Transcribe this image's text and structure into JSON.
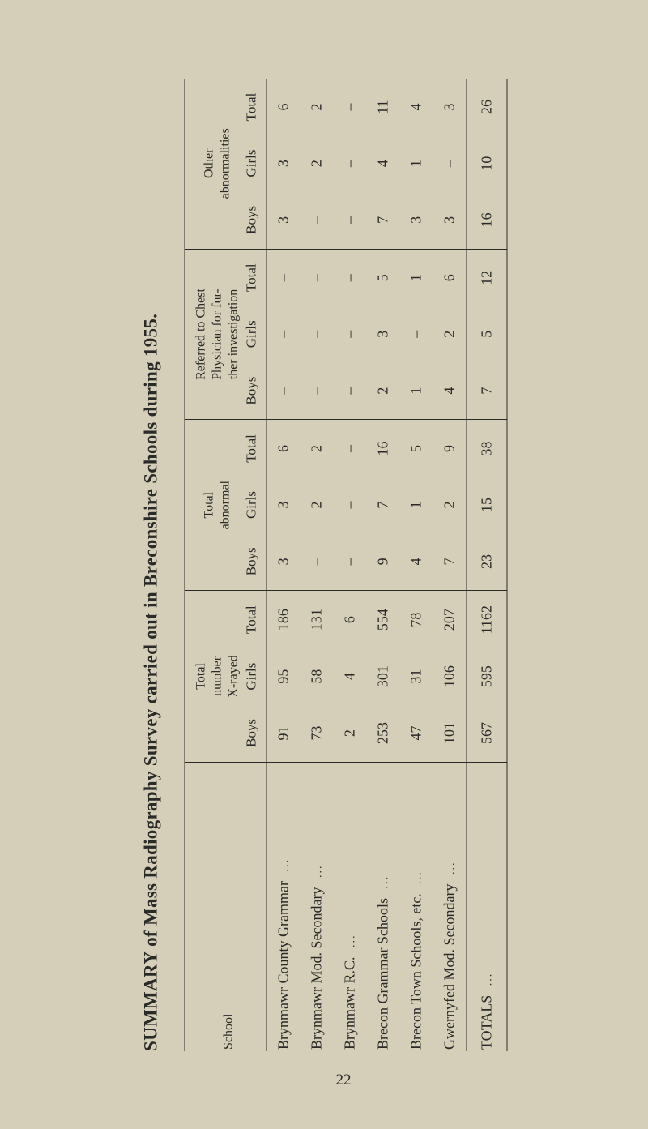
{
  "title": "SUMMARY of Mass Radiography Survey carried out in Breconshire Schools during 1955.",
  "page_number": "22",
  "groups": [
    {
      "label": "Total\nnumber\nX-rayed",
      "subs": [
        "Boys",
        "Girls",
        "Total"
      ]
    },
    {
      "label": "Total\nabnormal",
      "subs": [
        "Boys",
        "Girls",
        "Total"
      ]
    },
    {
      "label": "Referred to Chest\nPhysician for fur-\nther investigation",
      "subs": [
        "Boys",
        "Girls",
        "Total"
      ]
    },
    {
      "label": "Other\nabnormalities",
      "subs": [
        "Boys",
        "Girls",
        "Total"
      ]
    }
  ],
  "school_header": "School",
  "rows": [
    {
      "school": "Brynmawr County Grammar",
      "cells": [
        "91",
        "95",
        "186",
        "3",
        "3",
        "6",
        "–",
        "–",
        "–",
        "3",
        "3",
        "6"
      ]
    },
    {
      "school": "Brynmawr Mod. Secondary",
      "cells": [
        "73",
        "58",
        "131",
        "–",
        "2",
        "2",
        "–",
        "–",
        "–",
        "–",
        "2",
        "2"
      ]
    },
    {
      "school": "Brynmawr R.C.",
      "cells": [
        "2",
        "4",
        "6",
        "–",
        "–",
        "–",
        "–",
        "–",
        "–",
        "–",
        "–",
        "–"
      ]
    },
    {
      "school": "Brecon Grammar Schools",
      "cells": [
        "253",
        "301",
        "554",
        "9",
        "7",
        "16",
        "2",
        "3",
        "5",
        "7",
        "4",
        "11"
      ]
    },
    {
      "school": "Brecon Town Schools, etc.",
      "cells": [
        "47",
        "31",
        "78",
        "4",
        "1",
        "5",
        "1",
        "–",
        "1",
        "3",
        "1",
        "4"
      ]
    },
    {
      "school": "Gwernyfed Mod. Secondary",
      "cells": [
        "101",
        "106",
        "207",
        "7",
        "2",
        "9",
        "4",
        "2",
        "6",
        "3",
        "–",
        "3"
      ]
    }
  ],
  "totals": {
    "label": "TOTALS",
    "cells": [
      "567",
      "595",
      "1162",
      "23",
      "15",
      "38",
      "7",
      "5",
      "12",
      "16",
      "10",
      "26"
    ]
  }
}
